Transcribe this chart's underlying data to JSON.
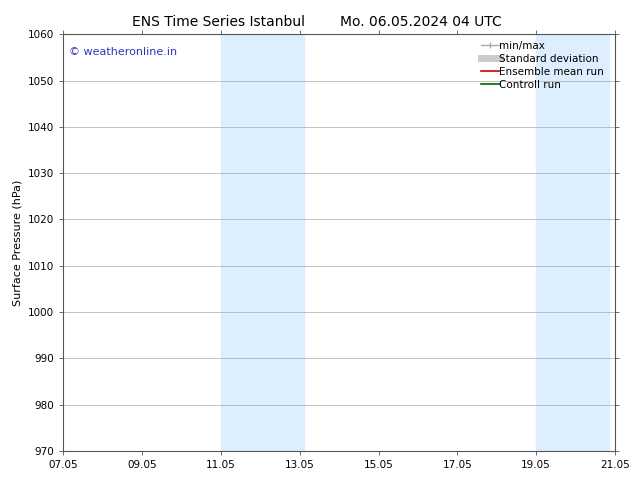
{
  "title_left": "ENS Time Series Istanbul",
  "title_right": "Mo. 06.05.2024 04 UTC",
  "ylabel": "Surface Pressure (hPa)",
  "ylim": [
    970,
    1060
  ],
  "yticks": [
    970,
    980,
    990,
    1000,
    1010,
    1020,
    1030,
    1040,
    1050,
    1060
  ],
  "xtick_labels": [
    "07.05",
    "09.05",
    "11.05",
    "13.05",
    "15.05",
    "17.05",
    "19.05",
    "21.05"
  ],
  "xtick_positions": [
    0,
    2,
    4,
    6,
    8,
    10,
    12,
    14
  ],
  "xlim": [
    0,
    14
  ],
  "shaded_bands": [
    {
      "x_start": 4.0,
      "x_end": 6.1
    },
    {
      "x_start": 12.0,
      "x_end": 13.85
    }
  ],
  "shade_color": "#ddeeff",
  "watermark_text": "© weatheronline.in",
  "watermark_color": "#3333bb",
  "legend_entries": [
    {
      "label": "min/max",
      "color": "#aaaaaa",
      "lw": 1.0,
      "style": "line_with_caps"
    },
    {
      "label": "Standard deviation",
      "color": "#cccccc",
      "lw": 5,
      "style": "thick"
    },
    {
      "label": "Ensemble mean run",
      "color": "#cc0000",
      "lw": 1.2,
      "style": "line"
    },
    {
      "label": "Controll run",
      "color": "#006600",
      "lw": 1.2,
      "style": "line"
    }
  ],
  "bg_color": "#ffffff",
  "grid_color": "#aaaaaa",
  "spine_color": "#555555",
  "tick_color": "#555555",
  "font_size_title": 10,
  "font_size_axis_label": 8,
  "font_size_tick": 7.5,
  "font_size_legend": 7.5,
  "font_size_watermark": 8
}
